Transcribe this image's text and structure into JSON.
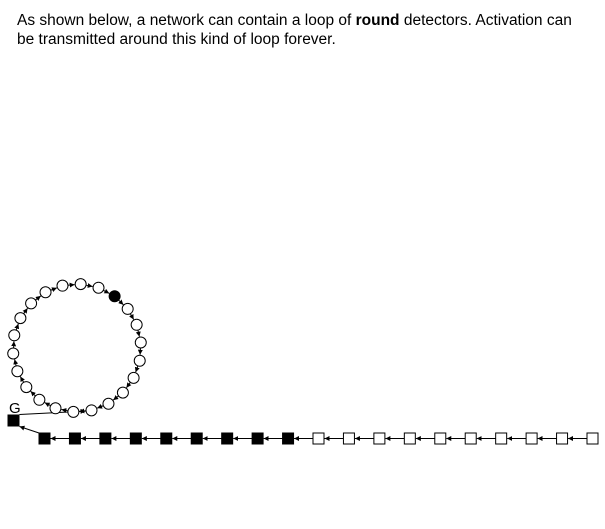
{
  "intro": {
    "text_before": "As shown below, a network can contain a loop of ",
    "bold_word": "round",
    "text_after": " detectors. Activation can be transmitted around this kind of loop forever."
  },
  "diagram": {
    "gate_label": "G",
    "loop": {
      "count": 22,
      "active_index": 0
    },
    "chain": {
      "states": [
        "on",
        "on",
        "on",
        "on",
        "on",
        "on",
        "on",
        "on",
        "on",
        "off",
        "off",
        "off",
        "off",
        "off",
        "off",
        "off",
        "off",
        "off",
        "off"
      ]
    },
    "colors": {
      "on": "#000000",
      "off": "#ffffff",
      "stroke": "#000000"
    }
  }
}
